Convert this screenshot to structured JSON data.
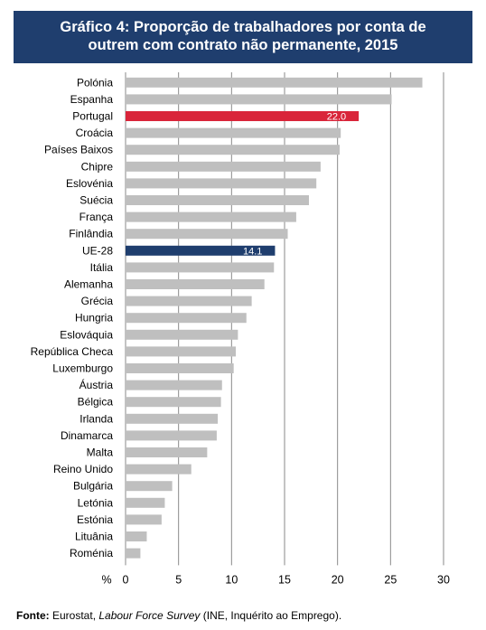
{
  "title": {
    "line1": "Gráfico 4: Proporção de trabalhadores por conta de",
    "line2": "outrem com contrato não permanente, 2015"
  },
  "source": {
    "label": "Fonte:",
    "text1": "Eurostat, ",
    "survey": "Labour Force Survey",
    "text2": " (INE, Inquérito ao Emprego)."
  },
  "chart_data": {
    "type": "bar",
    "orientation": "horizontal",
    "categories": [
      "Polónia",
      "Espanha",
      "Portugal",
      "Croácia",
      "Países Baixos",
      "Chipre",
      "Eslovénia",
      "Suécia",
      "França",
      "Finlândia",
      "UE-28",
      "Itália",
      "Alemanha",
      "Grécia",
      "Hungria",
      "Eslováquia",
      "República Checa",
      "Luxemburgo",
      "Áustria",
      "Bélgica",
      "Irlanda",
      "Dinamarca",
      "Malta",
      "Reino Unido",
      "Bulgária",
      "Letónia",
      "Estónia",
      "Lituânia",
      "Roménia"
    ],
    "values": [
      28.0,
      25.1,
      22.0,
      20.3,
      20.2,
      18.4,
      18.0,
      17.3,
      16.1,
      15.3,
      14.1,
      14.0,
      13.1,
      11.9,
      11.4,
      10.6,
      10.4,
      10.2,
      9.1,
      9.0,
      8.7,
      8.6,
      7.7,
      6.2,
      4.4,
      3.7,
      3.4,
      2.0,
      1.4
    ],
    "data_labels": {
      "Portugal": "22.0",
      "UE-28": "14.1"
    },
    "xlim": [
      0,
      30
    ],
    "xticks": [
      0,
      5,
      10,
      15,
      20,
      25,
      30
    ],
    "x_axis_unit": "%",
    "grid": true,
    "colors": {
      "default": "#bfbfbf",
      "Portugal": "#d9253a",
      "UE-28": "#1f3e6e",
      "grid": "#8a8a8a",
      "title_bg": "#1f3e6e"
    }
  }
}
